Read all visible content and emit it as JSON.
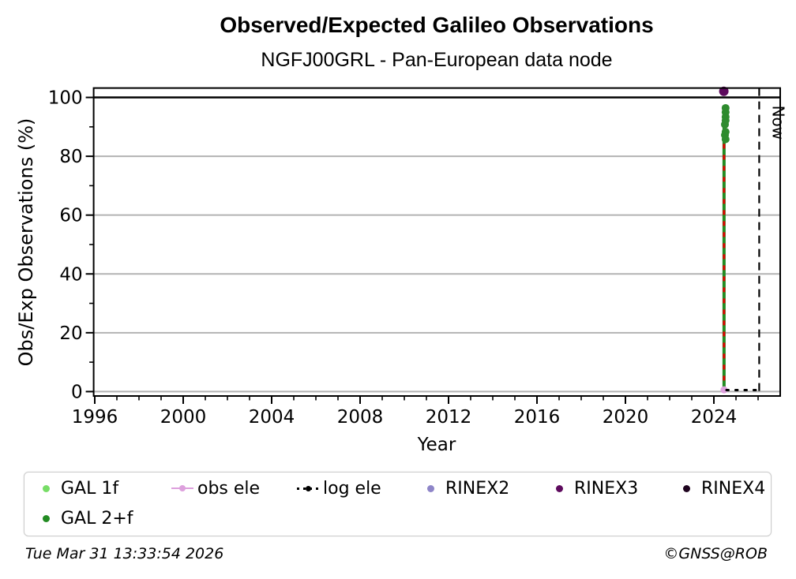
{
  "title": "Observed/Expected Galileo Observations",
  "subtitle": "NGFJ00GRL - Pan-European data node",
  "footer": {
    "timestamp": "Tue Mar 31 13:33:54 2026",
    "copyright": "©GNSS@ROB"
  },
  "chart_data": {
    "type": "scatter",
    "title": "Observed/Expected Galileo Observations",
    "subtitle": "NGFJ00GRL - Pan-European data node",
    "xlabel": "Year",
    "ylabel": "Obs/Exp Observations (%)",
    "xlim": [
      1995.95,
      2027.0
    ],
    "ylim": [
      -1.5,
      103.2
    ],
    "x_major_ticks": [
      1996,
      2000,
      2004,
      2008,
      2012,
      2016,
      2020,
      2024
    ],
    "x_minor_step": 1,
    "y_major_ticks": [
      0,
      20,
      40,
      60,
      80,
      100
    ],
    "y_minor_step": 10,
    "gridlines_y": [
      0,
      20,
      40,
      60,
      80
    ],
    "grid_color": "#b3b3b3",
    "reference_line_y": 100,
    "reference_line_color": "#000000",
    "now_line": {
      "x": 2026.05,
      "label": "Now",
      "color": "#000000"
    },
    "series": [
      {
        "name": "GAL 2+f",
        "type": "vline",
        "x": 2024.46,
        "y0": 0,
        "y1": 97.3,
        "color": "#228b22",
        "overlay_dash_color": "#e10000"
      },
      {
        "name": "GAL 2+f",
        "type": "scatter",
        "color": "#2e8b2e",
        "r": 5,
        "points": [
          [
            2024.53,
            96.4
          ],
          [
            2024.53,
            95.0
          ],
          [
            2024.53,
            93.4
          ],
          [
            2024.53,
            92.2
          ],
          [
            2024.5,
            90.8
          ],
          [
            2024.53,
            88.3
          ],
          [
            2024.5,
            87.2
          ],
          [
            2024.53,
            85.8
          ]
        ]
      },
      {
        "name": "RINEX3",
        "type": "scatter",
        "color": "#5e0b5e",
        "r": 6,
        "points": [
          [
            2024.45,
            102.1
          ]
        ]
      },
      {
        "name": "obs ele",
        "type": "scatter",
        "color": "#dda0dd",
        "r": 4.5,
        "points": [
          [
            2024.46,
            0.6
          ]
        ]
      },
      {
        "name": "log ele",
        "type": "dotted-line",
        "color": "#000000",
        "width": 3,
        "points": [
          [
            2024.57,
            0.5
          ],
          [
            2025.96,
            0.5
          ]
        ]
      }
    ]
  },
  "legend": {
    "items": [
      {
        "label": "GAL 1f",
        "color": "#77dd66",
        "marker": "dot"
      },
      {
        "label": "obs ele",
        "color": "#dda0dd",
        "marker": "line-dot"
      },
      {
        "label": "log ele",
        "color": "#000000",
        "marker": "dotted-line-dot"
      },
      {
        "label": "RINEX2",
        "color": "#8e85c8",
        "marker": "dot"
      },
      {
        "label": "RINEX3",
        "color": "#5e0b5e",
        "marker": "dot"
      },
      {
        "label": "RINEX4",
        "color": "#1f041f",
        "marker": "dot"
      },
      {
        "label": "GAL 2+f",
        "color": "#228b22",
        "marker": "dot"
      }
    ]
  }
}
